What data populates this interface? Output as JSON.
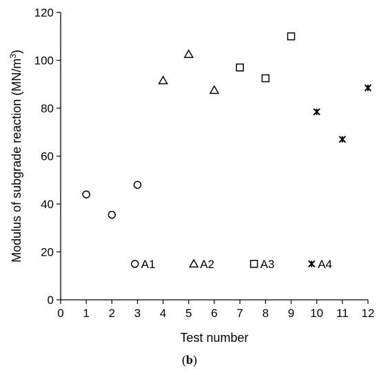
{
  "chart_data": {
    "type": "scatter",
    "xlabel": "Test number",
    "ylabel_main": "Modulus of subgrade reaction (MN/m",
    "ylabel_sup": "3",
    "ylabel_close": ")",
    "xlim": [
      0,
      12
    ],
    "ylim": [
      0,
      120
    ],
    "xticks": [
      "0",
      "1",
      "2",
      "3",
      "4",
      "5",
      "6",
      "7",
      "8",
      "9",
      "10",
      "11",
      "12"
    ],
    "yticks": [
      "0",
      "20",
      "40",
      "60",
      "80",
      "100",
      "120"
    ],
    "grid": false,
    "series": [
      {
        "name": "A1",
        "marker": "circle",
        "x": [
          1,
          2,
          3
        ],
        "y": [
          44,
          35.5,
          48
        ]
      },
      {
        "name": "A2",
        "marker": "triangle",
        "x": [
          4,
          5,
          6
        ],
        "y": [
          91.5,
          102.5,
          87.5
        ]
      },
      {
        "name": "A3",
        "marker": "square",
        "x": [
          7,
          8,
          9
        ],
        "y": [
          97,
          92.5,
          110
        ]
      },
      {
        "name": "A4",
        "marker": "star",
        "x": [
          10,
          11,
          12
        ],
        "y": [
          78.5,
          67,
          88.5
        ]
      }
    ],
    "legend": [
      {
        "name": "A1",
        "marker": "circle",
        "x": 2.9,
        "y": 15
      },
      {
        "name": "A2",
        "marker": "triangle",
        "x": 5.2,
        "y": 15
      },
      {
        "name": "A3",
        "marker": "square",
        "x": 7.55,
        "y": 15
      },
      {
        "name": "A4",
        "marker": "star",
        "x": 9.8,
        "y": 15
      }
    ]
  },
  "panel_label": {
    "open": "(",
    "letter": "b",
    "close": ")"
  }
}
